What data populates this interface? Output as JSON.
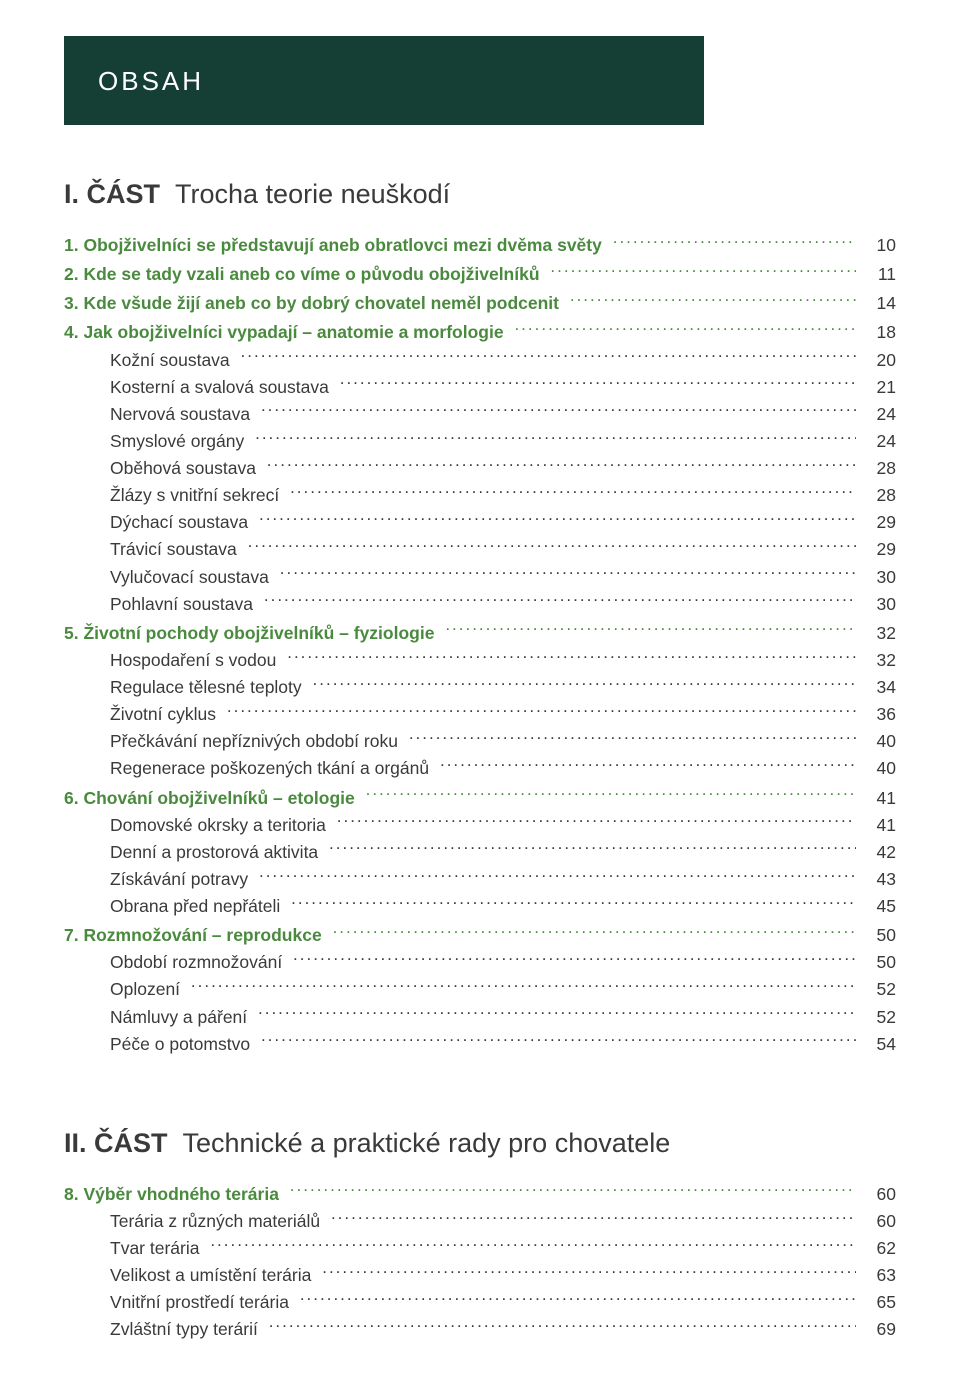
{
  "colors": {
    "band": "#153f35",
    "accent": "#4a8a3e",
    "text": "#3a3a3a",
    "background": "#ffffff"
  },
  "typography": {
    "body_fontsize": 17.5,
    "heading_fontsize": 27,
    "band_fontsize": 26,
    "line_height": 1.55
  },
  "header": {
    "title": "OBSAH"
  },
  "parts": [
    {
      "label": "I. ČÁST",
      "title": "Trocha teorie neuškodí",
      "sections": [
        {
          "num": "1.",
          "title": "Obojživelníci se představují aneb obratlovci mezi dvěma světy",
          "page": "10",
          "subs": []
        },
        {
          "num": "2.",
          "title": "Kde se tady vzali aneb co víme o původu obojživelníků",
          "page": "11",
          "subs": []
        },
        {
          "num": "3.",
          "title": "Kde všude žijí aneb co by dobrý chovatel neměl podcenit",
          "page": "14",
          "subs": []
        },
        {
          "num": "4.",
          "title": "Jak obojživelníci vypadají – anatomie a morfologie",
          "page": "18",
          "subs": [
            {
              "title": "Kožní soustava",
              "page": "20"
            },
            {
              "title": "Kosterní a svalová soustava",
              "page": "21"
            },
            {
              "title": "Nervová soustava",
              "page": "24"
            },
            {
              "title": "Smyslové orgány",
              "page": "24"
            },
            {
              "title": "Oběhová soustava",
              "page": "28"
            },
            {
              "title": "Žlázy s vnitřní sekrecí",
              "page": "28"
            },
            {
              "title": "Dýchací soustava",
              "page": "29"
            },
            {
              "title": "Trávicí soustava",
              "page": "29"
            },
            {
              "title": "Vylučovací soustava",
              "page": "30"
            },
            {
              "title": "Pohlavní soustava",
              "page": "30"
            }
          ]
        },
        {
          "num": "5.",
          "title": "Životní pochody obojživelníků – fyziologie",
          "page": "32",
          "subs": [
            {
              "title": "Hospodaření s vodou",
              "page": "32"
            },
            {
              "title": "Regulace tělesné teploty",
              "page": "34"
            },
            {
              "title": "Životní cyklus",
              "page": "36"
            },
            {
              "title": "Přečkávání nepříznivých období roku",
              "page": "40"
            },
            {
              "title": "Regenerace poškozených tkání a orgánů",
              "page": "40"
            }
          ]
        },
        {
          "num": "6.",
          "title": "Chování obojživelníků – etologie",
          "page": "41",
          "subs": [
            {
              "title": "Domovské okrsky a teritoria",
              "page": "41"
            },
            {
              "title": "Denní a prostorová aktivita",
              "page": "42"
            },
            {
              "title": "Získávání potravy",
              "page": "43"
            },
            {
              "title": "Obrana před nepřáteli",
              "page": "45"
            }
          ]
        },
        {
          "num": "7.",
          "title": "Rozmnožování – reprodukce",
          "page": "50",
          "subs": [
            {
              "title": "Období rozmnožování",
              "page": "50"
            },
            {
              "title": "Oplození",
              "page": "52"
            },
            {
              "title": "Námluvy a páření",
              "page": "52"
            },
            {
              "title": "Péče o potomstvo",
              "page": "54"
            }
          ]
        }
      ]
    },
    {
      "label": "II. ČÁST",
      "title": "Technické a praktické rady pro chovatele",
      "sections": [
        {
          "num": "8.",
          "title": "Výběr vhodného terária",
          "page": "60",
          "subs": [
            {
              "title": "Terária z různých materiálů",
              "page": "60"
            },
            {
              "title": "Tvar terária",
              "page": "62"
            },
            {
              "title": "Velikost a umístění terária",
              "page": "63"
            },
            {
              "title": "Vnitřní prostředí terária",
              "page": "65"
            },
            {
              "title": "Zvláštní typy terárií",
              "page": "69"
            }
          ]
        }
      ]
    }
  ]
}
